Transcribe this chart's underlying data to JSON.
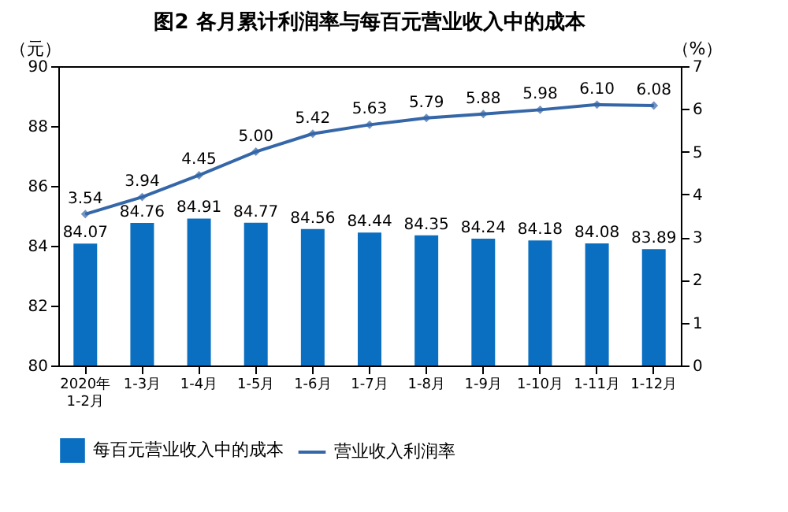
{
  "chart_data": {
    "type": "bar",
    "title": "图2 各月累计利润率与每百元营业收入中的成本",
    "ylabel": "（元）",
    "y2label": "（%）",
    "categories": [
      "2020年\n1-2月",
      "1-3月",
      "1-4月",
      "1-5月",
      "1-6月",
      "1-7月",
      "1-8月",
      "1-9月",
      "1-10月",
      "1-11月",
      "1-12月"
    ],
    "series": [
      {
        "name": "每百元营业收入中的成本",
        "color": "#0a6fc0",
        "values": [
          84.07,
          84.76,
          84.91,
          84.77,
          84.56,
          84.44,
          84.35,
          84.24,
          84.18,
          84.08,
          83.89
        ]
      },
      {
        "name": "营业收入利润率",
        "type": "line",
        "axis": "y2",
        "color": "#3567a8",
        "marker": "diamond",
        "values": [
          3.54,
          3.94,
          4.45,
          5.0,
          5.42,
          5.63,
          5.79,
          5.88,
          5.98,
          6.1,
          6.08
        ],
        "value_labels": [
          "3.54",
          "3.94",
          "4.45",
          "5.00",
          "5.42",
          "5.63",
          "5.79",
          "5.88",
          "5.98",
          "6.10",
          "6.08"
        ]
      }
    ],
    "ylim": [
      80,
      90
    ],
    "yticks": [
      80,
      82,
      84,
      86,
      88,
      90
    ],
    "y2lim": [
      0,
      7
    ],
    "y2ticks": [
      0,
      1,
      2,
      3,
      4,
      5,
      6,
      7
    ],
    "data_labels": true,
    "legend": "bottom",
    "grid": false
  }
}
